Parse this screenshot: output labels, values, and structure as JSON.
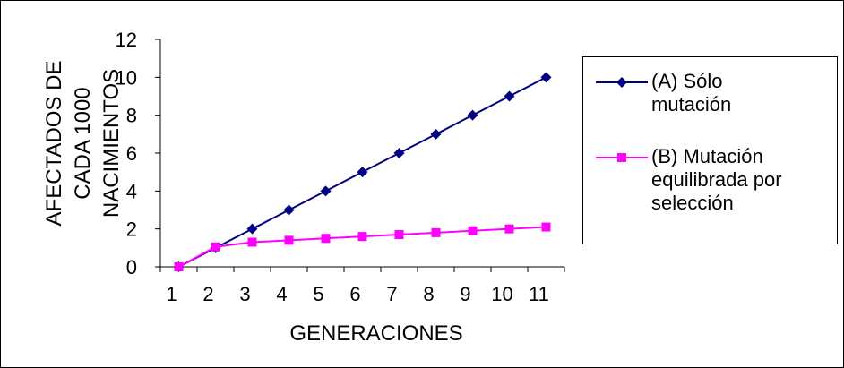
{
  "chart_data": {
    "type": "line",
    "xlabel": "GENERACIONES",
    "ylabel": "AFECTADOS DE CADA 1000 NACIMIENTOS",
    "ylabel_lines": [
      "AFECTADOS DE",
      "CADA 1000",
      "NACIMIENTOS"
    ],
    "categories": [
      "1",
      "2",
      "3",
      "4",
      "5",
      "6",
      "7",
      "8",
      "9",
      "10",
      "11"
    ],
    "ylim": [
      0,
      12
    ],
    "yticks": [
      "0",
      "2",
      "4",
      "6",
      "8",
      "10",
      "12"
    ],
    "grid": false,
    "legend_position": "right",
    "series": [
      {
        "name": "(A) Sólo mutación",
        "legend_lines": [
          "(A) Sólo",
          "mutación"
        ],
        "color": "#000080",
        "marker": "diamond",
        "values": [
          0,
          1,
          2,
          3,
          4,
          5,
          6,
          7,
          8,
          9,
          10
        ]
      },
      {
        "name": "(B) Mutación equilibrada por selección",
        "legend_lines": [
          "(B) Mutación",
          "equilibrada por",
          "selección"
        ],
        "color": "#FF00FF",
        "marker": "square",
        "values": [
          0,
          1.05,
          1.3,
          1.4,
          1.5,
          1.6,
          1.7,
          1.8,
          1.9,
          2.0,
          2.1
        ]
      }
    ]
  }
}
